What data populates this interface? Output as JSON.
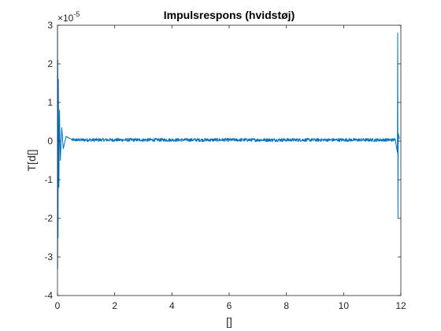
{
  "chart_data": {
    "type": "line",
    "title": "Impulsrespons (hvidstøj)",
    "xlabel": "[]",
    "ylabel": "T[d[]",
    "xlim": [
      0,
      12
    ],
    "ylim": [
      -4,
      3
    ],
    "y_exponent_label": "×10",
    "y_exponent_power": "-5",
    "x_ticks": [
      0,
      2,
      4,
      6,
      8,
      10,
      12
    ],
    "y_ticks": [
      -4,
      -3,
      -2,
      -1,
      0,
      1,
      2,
      3
    ],
    "x_tick_labels": [
      "0",
      "2",
      "4",
      "6",
      "8",
      "10",
      "12"
    ],
    "y_tick_labels": [
      "-4",
      "-3",
      "-2",
      "-1",
      "0",
      "1",
      "2",
      "3"
    ],
    "grid": false,
    "box": true,
    "series": [
      {
        "color": "#0072BD",
        "x": [
          0,
          0.005,
          0.01,
          0.02,
          0.03,
          0.05,
          0.07,
          0.1,
          0.15,
          0.2,
          0.3,
          0.5,
          1,
          2,
          4,
          6,
          8,
          10,
          11,
          11.8,
          11.88,
          11.89,
          11.9,
          11.91,
          11.95
        ],
        "y": [
          3.0,
          -3.3,
          2.1,
          -2.5,
          1.6,
          -1.2,
          0.8,
          -0.5,
          0.35,
          -0.2,
          0.12,
          0.06,
          0.06,
          0.06,
          0.06,
          0.06,
          0.06,
          0.06,
          0.06,
          0.06,
          -0.3,
          2.8,
          -2.0,
          0.2,
          0.05
        ],
        "noise_amplitude": 0.06
      }
    ]
  }
}
